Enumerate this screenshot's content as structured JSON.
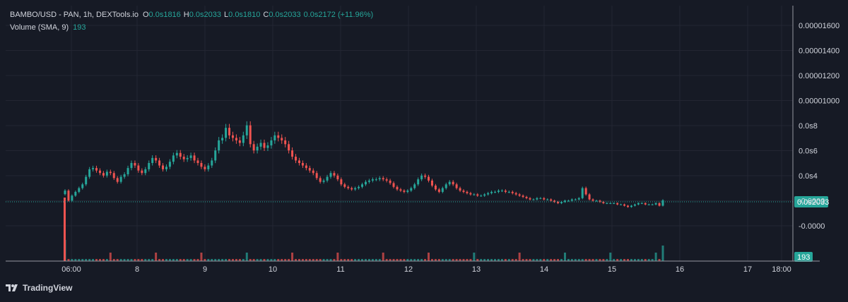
{
  "legend": {
    "symbol": "BAMBO/USD - PAN, 1h, DEXTools.io",
    "open_label": "O",
    "open_value": "0.0s1816",
    "high_label": "H",
    "high_value": "0.0s2033",
    "low_label": "L",
    "low_value": "0.0s1810",
    "close_label": "C",
    "close_value": "0.0s2033",
    "change": "0.0s2172 (+11.96%)",
    "volume_label": "Volume (SMA, 9)",
    "volume_value": "193"
  },
  "brand": {
    "name": "TradingView",
    "icon": "tradingview-logo-icon"
  },
  "colors": {
    "background": "#161a25",
    "grid": "#232632",
    "up": "#26a69a",
    "down": "#ef5350",
    "text": "#d1d4dc",
    "price_line": "#26a69a"
  },
  "chart_data": {
    "type": "candlestick",
    "grid": true,
    "y_axis_labels": [
      "0.00001600",
      "0.00001400",
      "0.00001200",
      "0.00001000",
      "0.0s8",
      "0.0s6",
      "0.0s4",
      "-0.0000",
      "-0.0000"
    ],
    "x_axis_labels": [
      "06:00",
      "8",
      "9",
      "10",
      "11",
      "12",
      "13",
      "14",
      "15",
      "16",
      "17",
      "18:00"
    ],
    "last_price_label": "0.0s2033",
    "last_volume_label": "193",
    "close_series": [
      2.8e-06,
      2e-06,
      2.4e-06,
      2.7e-06,
      3e-06,
      3.3e-06,
      3.9e-06,
      4.5e-06,
      4.6e-06,
      4.4e-06,
      4.2e-06,
      4e-06,
      4.3e-06,
      4.2e-06,
      3.8e-06,
      3.5e-06,
      3.9e-06,
      4.1e-06,
      4.6e-06,
      5e-06,
      4.8e-06,
      4.4e-06,
      4.2e-06,
      4.5e-06,
      5e-06,
      5.4e-06,
      5.2e-06,
      4.8e-06,
      4.5e-06,
      4.7e-06,
      5.1e-06,
      5.6e-06,
      5.8e-06,
      5.5e-06,
      5.3e-06,
      5.4e-06,
      5.6e-06,
      5.2e-06,
      5e-06,
      4.7e-06,
      4.5e-06,
      4.8e-06,
      5.2e-06,
      6e-06,
      6.8e-06,
      7e-06,
      7.8e-06,
      7.2e-06,
      7e-06,
      6.8e-06,
      6.6e-06,
      7.2e-06,
      8e-06,
      6.5e-06,
      6e-06,
      6.3e-06,
      6.6e-06,
      6.2e-06,
      6.4e-06,
      6.8e-06,
      7.2e-06,
      7e-06,
      6.8e-06,
      6.5e-06,
      6e-06,
      5.5e-06,
      5.2e-06,
      5e-06,
      4.8e-06,
      4.6e-06,
      4.4e-06,
      4.2e-06,
      3.8e-06,
      3.5e-06,
      3.6e-06,
      3.9e-06,
      4.2e-06,
      4e-06,
      3.7e-06,
      3.3e-06,
      3.1e-06,
      3e-06,
      2.9e-06,
      3e-06,
      3.1e-06,
      3.3e-06,
      3.5e-06,
      3.6e-06,
      3.7e-06,
      3.7e-06,
      3.8e-06,
      3.7e-06,
      3.6e-06,
      3.4e-06,
      3.1e-06,
      2.9e-06,
      2.8e-06,
      2.7e-06,
      2.8e-06,
      3e-06,
      3.3e-06,
      3.7e-06,
      4e-06,
      3.9e-06,
      3.6e-06,
      3.2e-06,
      2.9e-06,
      2.7e-06,
      3e-06,
      3.3e-06,
      3.5e-06,
      3.3e-06,
      3e-06,
      2.8e-06,
      2.7e-06,
      2.6e-06,
      2.5e-06,
      2.5e-06,
      2.4e-06,
      2.4e-06,
      2.5e-06,
      2.6e-06,
      2.7e-06,
      2.7e-06,
      2.8e-06,
      2.8e-06,
      2.7e-06,
      2.7e-06,
      2.6e-06,
      2.5e-06,
      2.4e-06,
      2.3e-06,
      2.2e-06,
      2.1e-06,
      2.1e-06,
      2.2e-06,
      2.2e-06,
      2.1e-06,
      2.1e-06,
      2e-06,
      1.9e-06,
      1.8e-06,
      1.9e-06,
      2e-06,
      2e-06,
      2.1e-06,
      2.1e-06,
      2.2e-06,
      3e-06,
      2.5e-06,
      2.1e-06,
      2e-06,
      2e-06,
      1.9e-06,
      1.8e-06,
      1.8e-06,
      1.8e-06,
      1.8e-06,
      1.7e-06,
      1.7e-06,
      1.6e-06,
      1.5e-06,
      1.6e-06,
      1.7e-06,
      1.8e-06,
      1.8e-06,
      1.7e-06,
      1.7e-06,
      1.7e-06,
      1.8e-06,
      1.6e-06,
      2.03e-06
    ]
  }
}
